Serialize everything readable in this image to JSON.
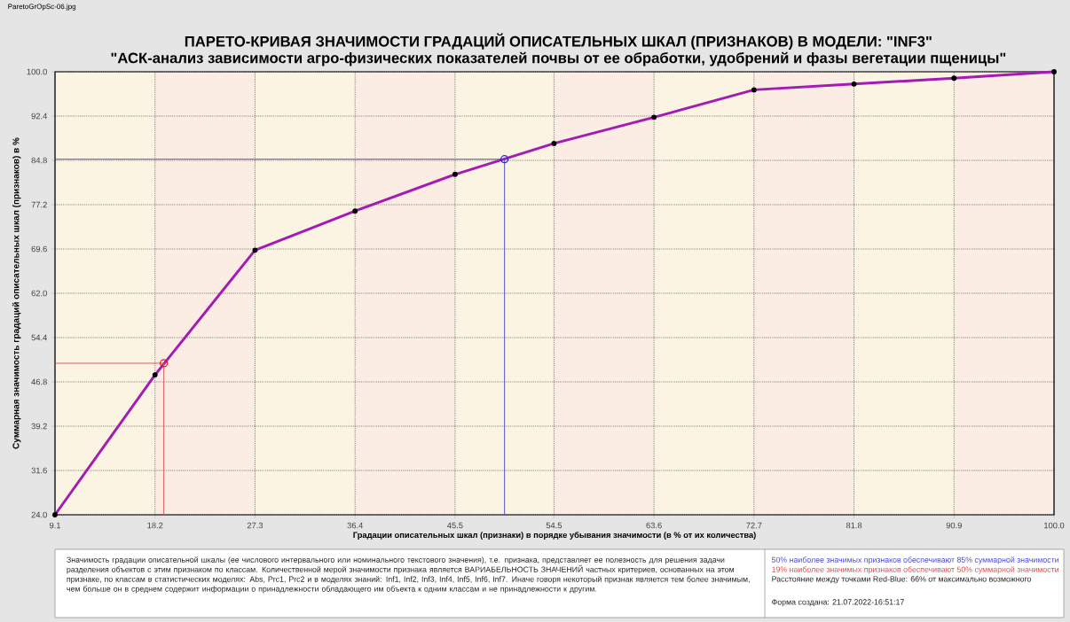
{
  "chart_data": {
    "type": "line",
    "title": "ПАРЕТО-КРИВАЯ ЗНАЧИМОСТИ ГРАДАЦИЙ ОПИСАТЕЛЬНЫХ ШКАЛ (ПРИЗНАКОВ) В МОДЕЛИ: \"INF3\"",
    "subtitle": "\"АСК-анализ зависимости агро-физических показателей почвы от ее обработки, удобрений и фазы вегетации пщеницы\"",
    "xlabel": "Градации описательных шкал (признаки) в порядке убывания значимости (в % от их количества)",
    "ylabel": "Суммарная значимость градаций описательных шкал (признаков) в %",
    "xlim": [
      9.1,
      100
    ],
    "xticks": [
      9.1,
      18.2,
      27.3,
      36.4,
      45.5,
      54.5,
      63.6,
      72.7,
      81.8,
      90.9,
      {
        "value": 100,
        "label": "100.0"
      }
    ],
    "ylim": [
      24,
      100
    ],
    "yticks": [
      {
        "value": 24,
        "label": "24.0"
      },
      31.6,
      39.2,
      46.8,
      54.4,
      {
        "value": 62,
        "label": "62.0"
      },
      69.6,
      77.2,
      84.8,
      92.4,
      {
        "value": 100,
        "label": "100.0"
      }
    ],
    "grid": true,
    "bands": [
      {
        "axis": "x",
        "from": 9.1,
        "to": 18.2,
        "color": "#fcf4e2"
      },
      {
        "axis": "x",
        "from": 18.2,
        "to": 27.3,
        "color": "#fbede4"
      },
      {
        "axis": "x",
        "from": 27.3,
        "to": 36.4,
        "color": "#fcf4e2"
      },
      {
        "axis": "x",
        "from": 36.4,
        "to": 45.5,
        "color": "#fbede4"
      },
      {
        "axis": "x",
        "from": 45.5,
        "to": 54.5,
        "color": "#fcf4e2"
      },
      {
        "axis": "x",
        "from": 54.5,
        "to": 63.6,
        "color": "#fbede4"
      },
      {
        "axis": "x",
        "from": 63.6,
        "to": 72.7,
        "color": "#fcf4e2"
      },
      {
        "axis": "x",
        "from": 72.7,
        "to": 81.8,
        "color": "#fbede4"
      },
      {
        "axis": "x",
        "from": 81.8,
        "to": 90.9,
        "color": "#fcf4e2"
      },
      {
        "axis": "x",
        "from": 90.9,
        "to": 100,
        "color": "#fbede4"
      }
    ],
    "series": [
      {
        "color": "#a31ab5",
        "marker": "circle",
        "x": [
          9.1,
          18.2,
          27.3,
          36.4,
          45.5,
          54.5,
          63.6,
          72.7,
          81.8,
          90.9,
          100
        ],
        "values": [
          24.0,
          48.0,
          69.4,
          76.1,
          82.4,
          87.7,
          92.2,
          96.9,
          97.9,
          98.9,
          100
        ]
      },
      {
        "color": "#4a4ad0",
        "marker": "none",
        "x": [
          9.1,
          50,
          50
        ],
        "values": [
          85,
          85,
          24
        ]
      },
      {
        "color": "#e05050",
        "marker": "none",
        "x": [
          9.1,
          19,
          19
        ],
        "values": [
          50,
          50,
          24
        ]
      },
      {
        "type": "scatter",
        "color": "#2a2ad0",
        "marker": "circle",
        "x": [
          50
        ],
        "values": [
          85
        ]
      },
      {
        "type": "scatter",
        "color": "#e02020",
        "marker": "circle",
        "x": [
          19
        ],
        "values": [
          50
        ]
      }
    ],
    "annotations": [
      "ParetoGrOpSc-06.jpg",
      "Значимость градации описательной шкалы (ее числового интервального или номинального текстового значения), т.е. признака, представляет ее полезность для решения задачи разделения объектов с этим признаком по классам. Количественной мерой значимости признака является ВАРИАБЕЛЬНОСТЬ ЗНАЧЕНИЙ частных критериев, основанных на этом признаке, по классам в статистических моделях: Abs, Prc1, Prc2 и в моделях знаний: Inf1, Inf2, Inf3, Inf4, Inf5, Inf6, Inf7. Иначе говоря некоторый признак является тем более значимым, чем больше он в среднем содержит информации о принадлежности обладающего им объекта к одним классам и не принадлежности к другим.",
      "50% наиболее значимых признаков обеспечивают 85% суммарной значимости",
      "19% наиболее значимых признаков обеспечивают 50% суммарной значимости",
      "Расстояние между точками Red-Blue: 66% от максимально возможного",
      "Форма создана: 21.07.2022-16:51:17"
    ]
  }
}
